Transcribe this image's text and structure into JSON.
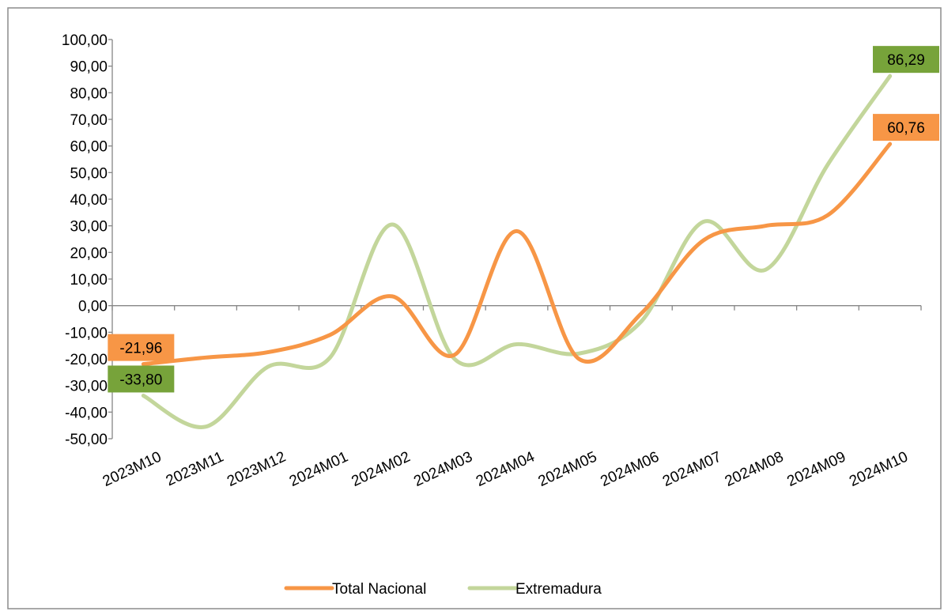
{
  "chart_data": {
    "type": "line",
    "title": "",
    "xlabel": "",
    "ylabel": "",
    "ylim": [
      -50,
      100
    ],
    "ytick_step": 10,
    "y_tick_labels": [
      "100,00",
      "90,00",
      "80,00",
      "70,00",
      "60,00",
      "50,00",
      "40,00",
      "30,00",
      "20,00",
      "10,00",
      "0,00",
      "-10,00",
      "-20,00",
      "-30,00",
      "-40,00",
      "-50,00"
    ],
    "grid": false,
    "smooth": true,
    "legend_position": "bottom",
    "categories": [
      "2023M10",
      "2023M11",
      "2023M12",
      "2024M01",
      "2024M02",
      "2024M03",
      "2024M04",
      "2024M05",
      "2024M06",
      "2024M07",
      "2024M08",
      "2024M09",
      "2024M10"
    ],
    "series": [
      {
        "name": "Total Nacional",
        "color": "#F79646",
        "values": [
          -21.96,
          -19.5,
          -17.5,
          -11.0,
          3.5,
          -18.5,
          28.0,
          -20.0,
          -3.0,
          24.5,
          30.0,
          34.0,
          60.76
        ],
        "labels": [
          {
            "index": 0,
            "text": "-21,96"
          },
          {
            "index": 12,
            "text": "60,76"
          }
        ]
      },
      {
        "name": "Extremadura",
        "color": "#C3D69B",
        "label_color": "#77A33A",
        "values": [
          -33.8,
          -45.5,
          -23.0,
          -19.5,
          30.5,
          -20.0,
          -14.5,
          -18.0,
          -6.0,
          31.5,
          13.5,
          53.0,
          86.29
        ],
        "labels": [
          {
            "index": 0,
            "text": "-33,80"
          },
          {
            "index": 12,
            "text": "86,29"
          }
        ]
      }
    ]
  }
}
